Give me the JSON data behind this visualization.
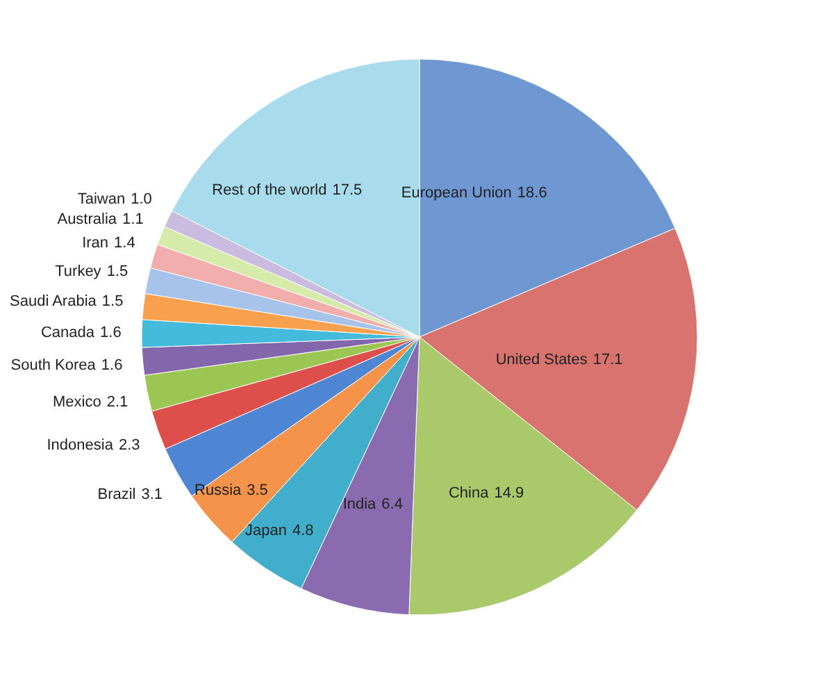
{
  "chart_data": {
    "type": "pie",
    "categories": [
      "European Union",
      "United States",
      "China",
      "India",
      "Japan",
      "Russia",
      "Brazil",
      "Indonesia",
      "Mexico",
      "South Korea",
      "Canada",
      "Saudi Arabia",
      "Turkey",
      "Iran",
      "Australia",
      "Taiwan",
      "Rest of the world"
    ],
    "values": [
      18.6,
      17.1,
      14.9,
      6.4,
      4.8,
      3.5,
      3.1,
      2.3,
      2.1,
      1.6,
      1.6,
      1.5,
      1.5,
      1.4,
      1.1,
      1.0,
      17.5
    ],
    "colors": [
      "#6f97d2",
      "#d9736f",
      "#a9c96b",
      "#8a6bb0",
      "#41aecb",
      "#f5934a",
      "#4f86d4",
      "#dc4f4b",
      "#9cc653",
      "#8466ad",
      "#45bbdb",
      "#f7a04e",
      "#a8c3ea",
      "#f2aeac",
      "#d6eaaa",
      "#c9bce0",
      "#a8dcec"
    ],
    "value_labels": [
      "18.6",
      "17.1",
      "14.9",
      "6.4",
      "4.8",
      "3.5",
      "3.1",
      "2.3",
      "2.1",
      "1.6",
      "1.6",
      "1.5",
      "1.5",
      "1.4",
      "1.1",
      "1.0",
      "17.5"
    ]
  }
}
